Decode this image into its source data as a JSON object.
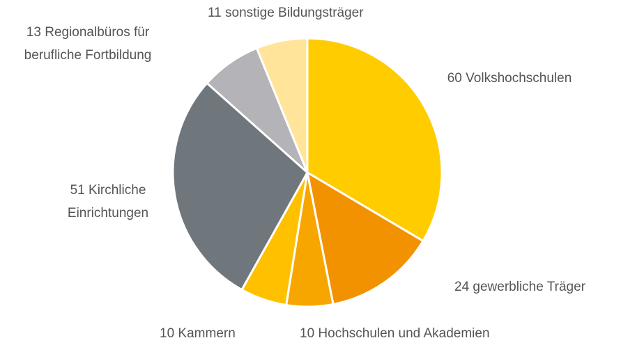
{
  "chart_data": {
    "type": "pie",
    "categories": [
      "Volkshochschulen",
      "gewerbliche Träger",
      "Hochschulen und Akademien",
      "Kammern",
      "Kirchliche Einrichtungen",
      "Regionalbüros für berufliche Fortbildung",
      "sonstige Bildungsträger"
    ],
    "values": [
      60,
      24,
      10,
      10,
      51,
      13,
      11
    ],
    "colors": [
      "#ffcc00",
      "#f39200",
      "#f7a600",
      "#ffc000",
      "#6f777d",
      "#b3b3b8",
      "#ffe499"
    ]
  }
}
